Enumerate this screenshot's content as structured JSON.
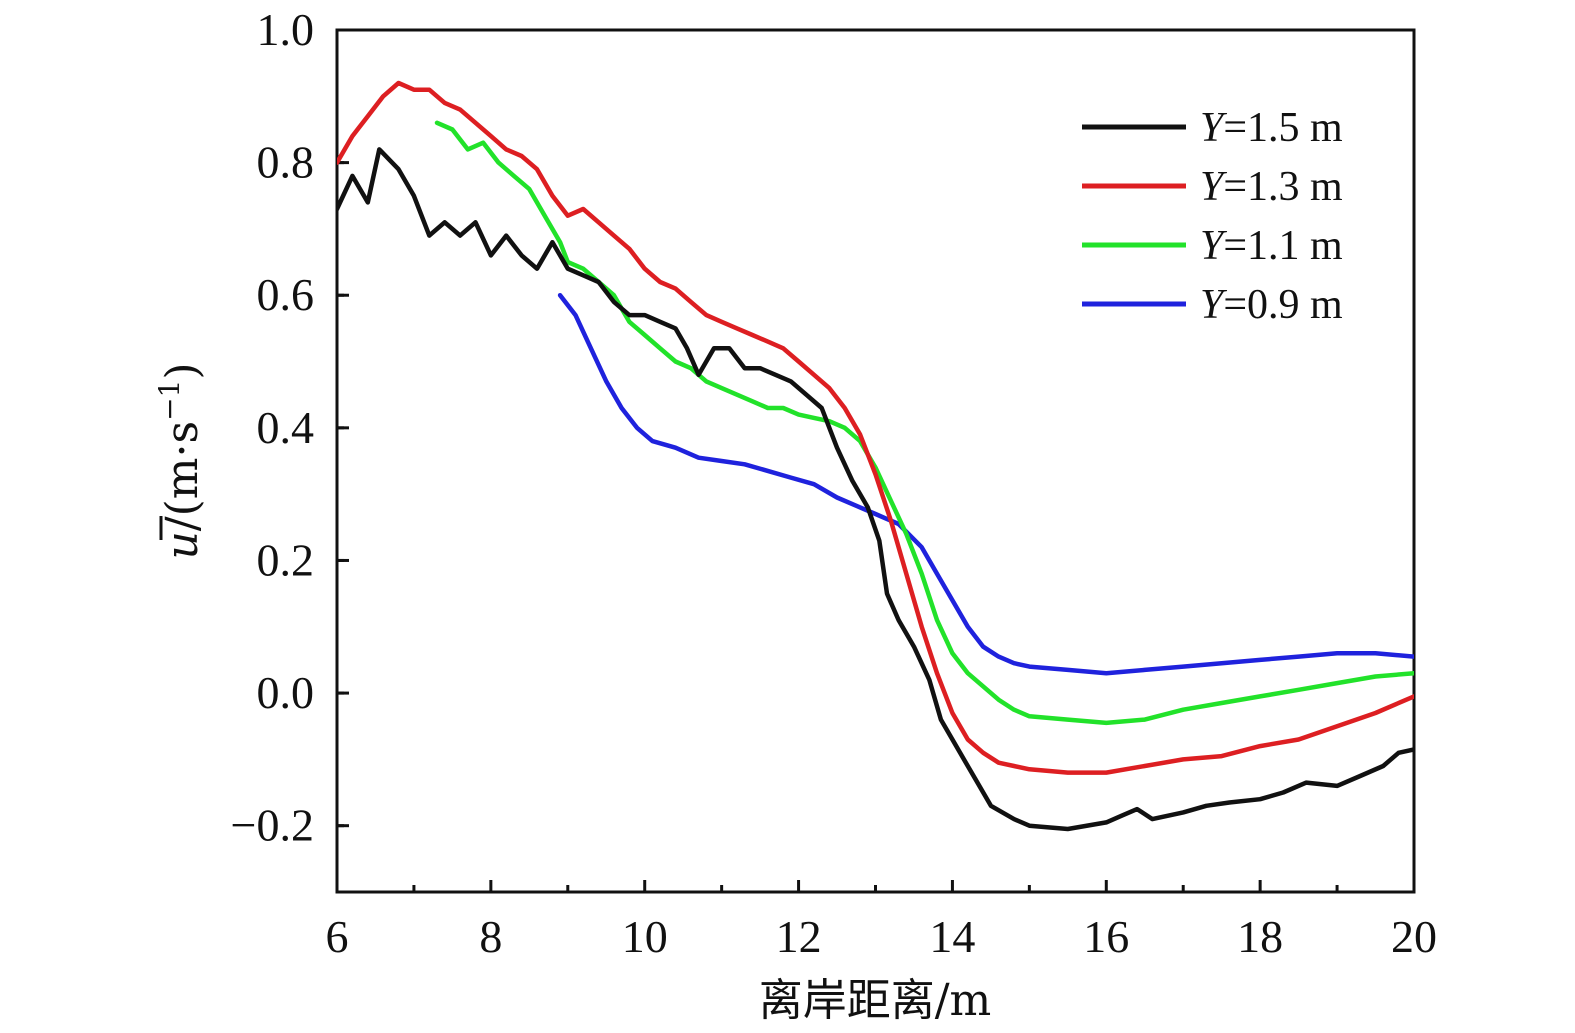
{
  "chart_data": {
    "type": "line",
    "xlabel": "离岸距离/m",
    "ylabel": {
      "symbol": "u",
      "unit_open": "/(m·s",
      "unit_exp": "−1",
      "unit_close": ")"
    },
    "xlim": [
      6,
      20
    ],
    "ylim": [
      -0.3,
      1.0
    ],
    "xticks": [
      6,
      8,
      10,
      12,
      14,
      16,
      18,
      20
    ],
    "xtick_labels": [
      "6",
      "8",
      "10",
      "12",
      "14",
      "16",
      "18",
      "20"
    ],
    "yticks": [
      -0.2,
      0.0,
      0.2,
      0.4,
      0.6,
      0.8,
      1.0
    ],
    "ytick_labels": [
      "−0.2",
      "0.0",
      "0.2",
      "0.4",
      "0.6",
      "0.8",
      "1.0"
    ],
    "grid": false,
    "legend_position": "top-right",
    "series": [
      {
        "name": "Y=1.5 m",
        "legend_var": "Y",
        "legend_rest": "=1.5 m",
        "color": "#111111",
        "points": [
          [
            6.0,
            0.73
          ],
          [
            6.2,
            0.78
          ],
          [
            6.4,
            0.74
          ],
          [
            6.55,
            0.82
          ],
          [
            6.8,
            0.79
          ],
          [
            7.0,
            0.75
          ],
          [
            7.2,
            0.69
          ],
          [
            7.4,
            0.71
          ],
          [
            7.6,
            0.69
          ],
          [
            7.8,
            0.71
          ],
          [
            8.0,
            0.66
          ],
          [
            8.2,
            0.69
          ],
          [
            8.4,
            0.66
          ],
          [
            8.6,
            0.64
          ],
          [
            8.8,
            0.68
          ],
          [
            9.0,
            0.64
          ],
          [
            9.2,
            0.63
          ],
          [
            9.4,
            0.62
          ],
          [
            9.6,
            0.59
          ],
          [
            9.8,
            0.57
          ],
          [
            10.0,
            0.57
          ],
          [
            10.2,
            0.56
          ],
          [
            10.4,
            0.55
          ],
          [
            10.55,
            0.52
          ],
          [
            10.7,
            0.48
          ],
          [
            10.9,
            0.52
          ],
          [
            11.1,
            0.52
          ],
          [
            11.3,
            0.49
          ],
          [
            11.5,
            0.49
          ],
          [
            11.7,
            0.48
          ],
          [
            11.9,
            0.47
          ],
          [
            12.1,
            0.45
          ],
          [
            12.3,
            0.43
          ],
          [
            12.5,
            0.37
          ],
          [
            12.7,
            0.32
          ],
          [
            12.9,
            0.28
          ],
          [
            13.05,
            0.23
          ],
          [
            13.15,
            0.15
          ],
          [
            13.3,
            0.11
          ],
          [
            13.5,
            0.07
          ],
          [
            13.7,
            0.02
          ],
          [
            13.85,
            -0.04
          ],
          [
            14.1,
            -0.09
          ],
          [
            14.3,
            -0.13
          ],
          [
            14.5,
            -0.17
          ],
          [
            14.8,
            -0.19
          ],
          [
            15.0,
            -0.2
          ],
          [
            15.5,
            -0.205
          ],
          [
            16.0,
            -0.195
          ],
          [
            16.2,
            -0.185
          ],
          [
            16.4,
            -0.175
          ],
          [
            16.6,
            -0.19
          ],
          [
            17.0,
            -0.18
          ],
          [
            17.3,
            -0.17
          ],
          [
            17.6,
            -0.165
          ],
          [
            18.0,
            -0.16
          ],
          [
            18.3,
            -0.15
          ],
          [
            18.6,
            -0.135
          ],
          [
            19.0,
            -0.14
          ],
          [
            19.3,
            -0.125
          ],
          [
            19.6,
            -0.11
          ],
          [
            19.8,
            -0.09
          ],
          [
            20.0,
            -0.085
          ]
        ]
      },
      {
        "name": "Y=1.3 m",
        "legend_var": "Y",
        "legend_rest": "=1.3 m",
        "color": "#dd1f22",
        "points": [
          [
            6.0,
            0.8
          ],
          [
            6.2,
            0.84
          ],
          [
            6.4,
            0.87
          ],
          [
            6.6,
            0.9
          ],
          [
            6.8,
            0.92
          ],
          [
            7.0,
            0.91
          ],
          [
            7.2,
            0.91
          ],
          [
            7.4,
            0.89
          ],
          [
            7.6,
            0.88
          ],
          [
            7.8,
            0.86
          ],
          [
            8.0,
            0.84
          ],
          [
            8.2,
            0.82
          ],
          [
            8.4,
            0.81
          ],
          [
            8.6,
            0.79
          ],
          [
            8.8,
            0.75
          ],
          [
            9.0,
            0.72
          ],
          [
            9.2,
            0.73
          ],
          [
            9.4,
            0.71
          ],
          [
            9.6,
            0.69
          ],
          [
            9.8,
            0.67
          ],
          [
            10.0,
            0.64
          ],
          [
            10.2,
            0.62
          ],
          [
            10.4,
            0.61
          ],
          [
            10.6,
            0.59
          ],
          [
            10.8,
            0.57
          ],
          [
            11.0,
            0.56
          ],
          [
            11.2,
            0.55
          ],
          [
            11.4,
            0.54
          ],
          [
            11.6,
            0.53
          ],
          [
            11.8,
            0.52
          ],
          [
            12.0,
            0.5
          ],
          [
            12.2,
            0.48
          ],
          [
            12.4,
            0.46
          ],
          [
            12.6,
            0.43
          ],
          [
            12.8,
            0.39
          ],
          [
            13.0,
            0.33
          ],
          [
            13.2,
            0.26
          ],
          [
            13.4,
            0.18
          ],
          [
            13.6,
            0.1
          ],
          [
            13.8,
            0.03
          ],
          [
            14.0,
            -0.03
          ],
          [
            14.2,
            -0.07
          ],
          [
            14.4,
            -0.09
          ],
          [
            14.6,
            -0.105
          ],
          [
            14.8,
            -0.11
          ],
          [
            15.0,
            -0.115
          ],
          [
            15.5,
            -0.12
          ],
          [
            16.0,
            -0.12
          ],
          [
            16.5,
            -0.11
          ],
          [
            17.0,
            -0.1
          ],
          [
            17.5,
            -0.095
          ],
          [
            18.0,
            -0.08
          ],
          [
            18.5,
            -0.07
          ],
          [
            19.0,
            -0.05
          ],
          [
            19.5,
            -0.03
          ],
          [
            20.0,
            -0.005
          ]
        ]
      },
      {
        "name": "Y=1.1 m",
        "legend_var": "Y",
        "legend_rest": "=1.1 m",
        "color": "#22e22a",
        "points": [
          [
            7.3,
            0.86
          ],
          [
            7.5,
            0.85
          ],
          [
            7.7,
            0.82
          ],
          [
            7.9,
            0.83
          ],
          [
            8.1,
            0.8
          ],
          [
            8.3,
            0.78
          ],
          [
            8.5,
            0.76
          ],
          [
            8.7,
            0.72
          ],
          [
            8.9,
            0.68
          ],
          [
            9.0,
            0.65
          ],
          [
            9.2,
            0.64
          ],
          [
            9.4,
            0.62
          ],
          [
            9.6,
            0.6
          ],
          [
            9.8,
            0.56
          ],
          [
            10.0,
            0.54
          ],
          [
            10.2,
            0.52
          ],
          [
            10.4,
            0.5
          ],
          [
            10.6,
            0.49
          ],
          [
            10.8,
            0.47
          ],
          [
            11.0,
            0.46
          ],
          [
            11.2,
            0.45
          ],
          [
            11.4,
            0.44
          ],
          [
            11.6,
            0.43
          ],
          [
            11.8,
            0.43
          ],
          [
            12.0,
            0.42
          ],
          [
            12.2,
            0.415
          ],
          [
            12.4,
            0.41
          ],
          [
            12.6,
            0.4
          ],
          [
            12.8,
            0.38
          ],
          [
            13.0,
            0.34
          ],
          [
            13.2,
            0.29
          ],
          [
            13.4,
            0.24
          ],
          [
            13.6,
            0.18
          ],
          [
            13.8,
            0.11
          ],
          [
            14.0,
            0.06
          ],
          [
            14.2,
            0.03
          ],
          [
            14.4,
            0.01
          ],
          [
            14.6,
            -0.01
          ],
          [
            14.8,
            -0.025
          ],
          [
            15.0,
            -0.035
          ],
          [
            15.5,
            -0.04
          ],
          [
            16.0,
            -0.045
          ],
          [
            16.5,
            -0.04
          ],
          [
            17.0,
            -0.025
          ],
          [
            17.5,
            -0.015
          ],
          [
            18.0,
            -0.005
          ],
          [
            18.5,
            0.005
          ],
          [
            19.0,
            0.015
          ],
          [
            19.5,
            0.025
          ],
          [
            20.0,
            0.03
          ]
        ]
      },
      {
        "name": "Y=0.9 m",
        "legend_var": "Y",
        "legend_rest": "=0.9 m",
        "color": "#1f22dd",
        "points": [
          [
            8.9,
            0.6
          ],
          [
            9.1,
            0.57
          ],
          [
            9.3,
            0.52
          ],
          [
            9.5,
            0.47
          ],
          [
            9.7,
            0.43
          ],
          [
            9.9,
            0.4
          ],
          [
            10.1,
            0.38
          ],
          [
            10.4,
            0.37
          ],
          [
            10.7,
            0.355
          ],
          [
            11.0,
            0.35
          ],
          [
            11.3,
            0.345
          ],
          [
            11.6,
            0.335
          ],
          [
            11.9,
            0.325
          ],
          [
            12.2,
            0.315
          ],
          [
            12.5,
            0.295
          ],
          [
            12.8,
            0.28
          ],
          [
            13.0,
            0.27
          ],
          [
            13.3,
            0.255
          ],
          [
            13.6,
            0.22
          ],
          [
            13.8,
            0.18
          ],
          [
            14.0,
            0.14
          ],
          [
            14.2,
            0.1
          ],
          [
            14.4,
            0.07
          ],
          [
            14.6,
            0.055
          ],
          [
            14.8,
            0.045
          ],
          [
            15.0,
            0.04
          ],
          [
            15.5,
            0.035
          ],
          [
            16.0,
            0.03
          ],
          [
            16.5,
            0.035
          ],
          [
            17.0,
            0.04
          ],
          [
            17.5,
            0.045
          ],
          [
            18.0,
            0.05
          ],
          [
            18.5,
            0.055
          ],
          [
            19.0,
            0.06
          ],
          [
            19.5,
            0.06
          ],
          [
            20.0,
            0.055
          ]
        ]
      }
    ]
  }
}
